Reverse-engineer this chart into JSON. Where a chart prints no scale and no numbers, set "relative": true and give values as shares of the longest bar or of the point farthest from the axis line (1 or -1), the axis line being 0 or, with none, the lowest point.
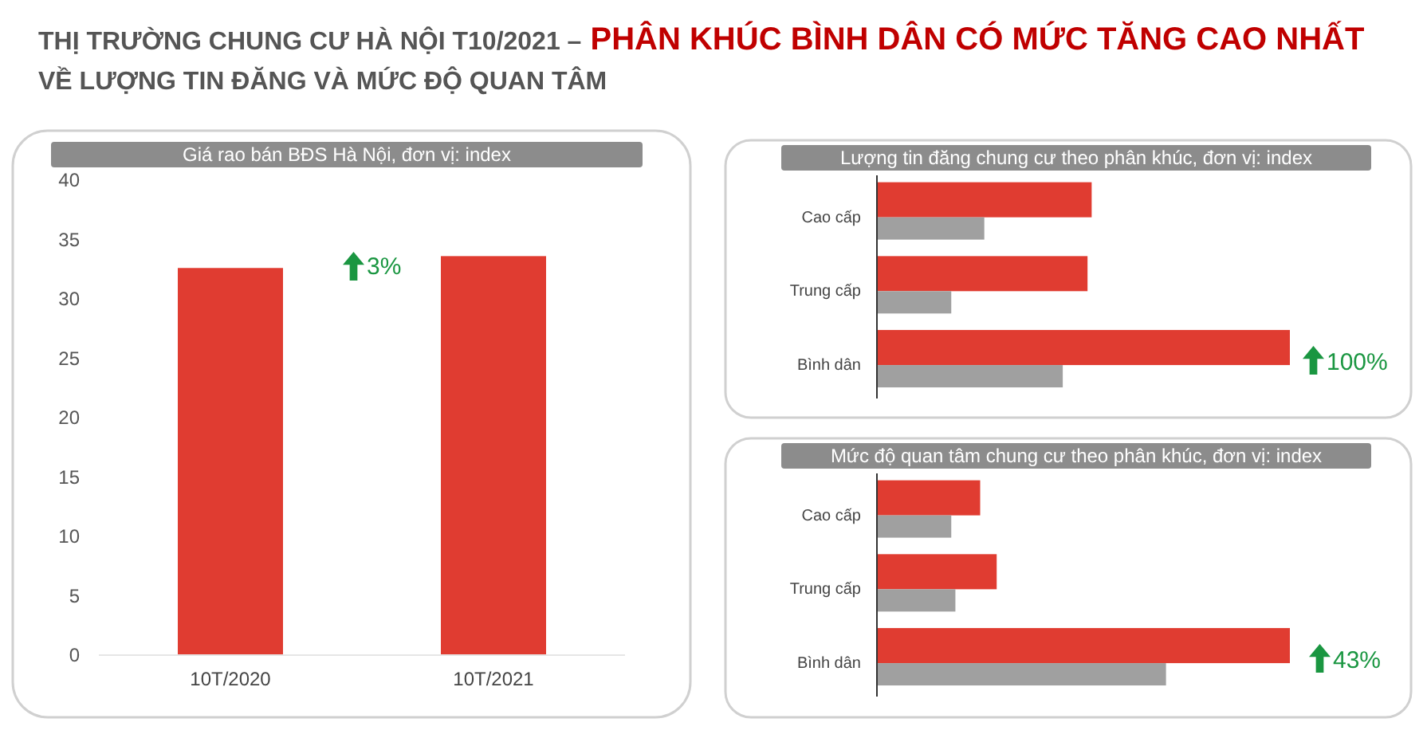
{
  "chart_data": [
    {
      "type": "other",
      "title": "THỊ TRƯỜNG CHUNG CƯ HÀ NỘI T10/2021 – PHÂN KHÚC BÌNH DÂN CÓ MỨC TĂNG CAO NHẤT",
      "subtitle": "VỀ LƯỢNG TIN ĐĂNG VÀ MỨC ĐỘ QUAN TÂM"
    },
    {
      "type": "bar",
      "title": "Giá rao bán BĐS Hà Nội, đơn vị: index",
      "categories": [
        "10T/2020",
        "10T/2021"
      ],
      "values": [
        32.6,
        33.6
      ],
      "color": "#e03c31",
      "ylim": [
        0,
        40
      ],
      "yticks": [
        0,
        5,
        10,
        15,
        20,
        25,
        30,
        35,
        40
      ],
      "grid": false,
      "annotations": [
        "3%"
      ]
    },
    {
      "type": "bar",
      "orientation": "horizontal",
      "relative": true,
      "title": "Lượng tin đăng chung cư theo phân khúc, đơn vị: index",
      "categories": [
        "Cao cấp",
        "Trung cấp",
        "Bình dân"
      ],
      "series": [
        {
          "color": "#e03c31",
          "values": [
            0.52,
            0.51,
            1
          ]
        },
        {
          "color": "#a0a0a0",
          "values": [
            0.26,
            0.18,
            0.45
          ]
        }
      ],
      "annotations": [
        "100%"
      ]
    },
    {
      "type": "bar",
      "orientation": "horizontal",
      "relative": true,
      "title": "Mức độ quan tâm chung cư theo phân khúc, đơn vị: index",
      "categories": [
        "Cao cấp",
        "Trung cấp",
        "Bình dân"
      ],
      "series": [
        {
          "color": "#e03c31",
          "values": [
            0.25,
            0.29,
            1
          ]
        },
        {
          "color": "#a0a0a0",
          "values": [
            0.18,
            0.19,
            0.7
          ]
        }
      ],
      "annotations": [
        "43%"
      ]
    }
  ]
}
